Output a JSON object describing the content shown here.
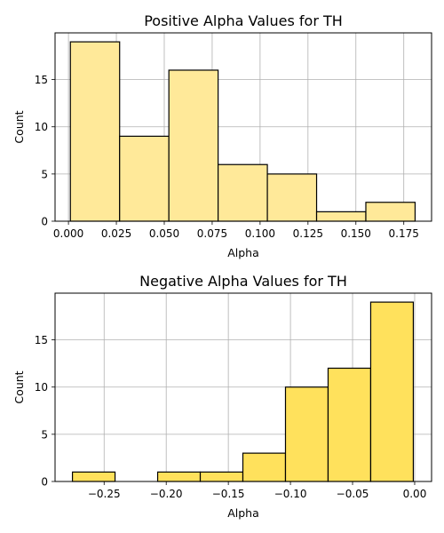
{
  "chart_data": [
    {
      "type": "bar",
      "title": "Positive Alpha Values for TH",
      "xlabel": "Alpha",
      "ylabel": "Count",
      "bin_edges": [
        0.001,
        0.0267,
        0.0524,
        0.0781,
        0.1038,
        0.1295,
        0.1552,
        0.1809
      ],
      "values": [
        19,
        9,
        16,
        6,
        5,
        1,
        2
      ],
      "xlim": [
        -0.007,
        0.1895
      ],
      "ylim": [
        0,
        19.95
      ],
      "xticks": [
        0.0,
        0.025,
        0.05,
        0.075,
        0.1,
        0.125,
        0.15,
        0.175
      ],
      "xtick_labels": [
        "0.000",
        "0.025",
        "0.050",
        "0.075",
        "0.100",
        "0.125",
        "0.150",
        "0.175"
      ],
      "yticks": [
        0,
        5,
        10,
        15
      ],
      "ytick_labels": [
        "0",
        "5",
        "10",
        "15"
      ],
      "grid": true,
      "bar_color": "#FFE999",
      "edge_color": "#000000"
    },
    {
      "type": "bar",
      "title": "Negative Alpha Values for TH",
      "xlabel": "Alpha",
      "ylabel": "Count",
      "bin_edges": [
        -0.2755,
        -0.2412,
        -0.2069,
        -0.1726,
        -0.1383,
        -0.104,
        -0.0697,
        -0.0354,
        -0.0011
      ],
      "values": [
        1,
        0,
        1,
        1,
        3,
        10,
        12,
        19
      ],
      "xlim": [
        -0.2895,
        0.0136
      ],
      "ylim": [
        0,
        19.95
      ],
      "xticks": [
        -0.25,
        -0.2,
        -0.15,
        -0.1,
        -0.05,
        0.0
      ],
      "xtick_labels": [
        "−0.25",
        "−0.20",
        "−0.15",
        "−0.10",
        "−0.05",
        "0.00"
      ],
      "yticks": [
        0,
        5,
        10,
        15
      ],
      "ytick_labels": [
        "0",
        "5",
        "10",
        "15"
      ],
      "grid": true,
      "bar_color": "#FFE15C",
      "edge_color": "#000000"
    }
  ]
}
